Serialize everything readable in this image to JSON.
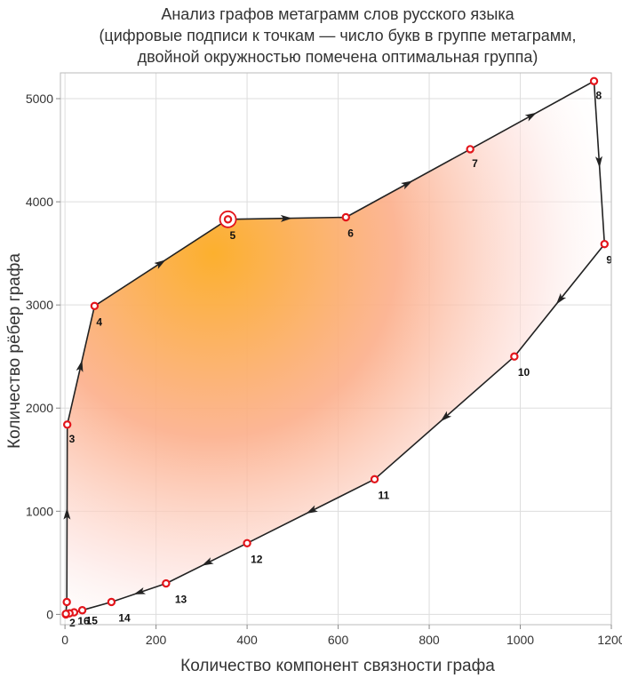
{
  "chart_data": {
    "type": "line",
    "title_lines": [
      "Анализ графов метаграмм слов русского языка",
      "(цифровые подписи к точкам — число букв в группе метаграмм,",
      "двойной окружностью помечена оптимальная группа)"
    ],
    "xlabel": "Количество компонент связности графа",
    "ylabel": "Количество рёбер графа",
    "xlim": [
      -10,
      1200
    ],
    "ylim": [
      -100,
      5250
    ],
    "xticks": [
      0,
      200,
      400,
      600,
      800,
      1000,
      1200
    ],
    "yticks": [
      0,
      1000,
      2000,
      3000,
      4000,
      5000
    ],
    "grid": true,
    "optimal_label": "5",
    "series": [
      {
        "points": [
          {
            "label": "",
            "x": 2,
            "y": 0
          },
          {
            "label": "",
            "x": 4,
            "y": 120
          },
          {
            "label": "3",
            "x": 5,
            "y": 1840
          },
          {
            "label": "4",
            "x": 65,
            "y": 2990
          },
          {
            "label": "5",
            "x": 358,
            "y": 3830
          },
          {
            "label": "6",
            "x": 617,
            "y": 3850
          },
          {
            "label": "7",
            "x": 890,
            "y": 4510
          },
          {
            "label": "8",
            "x": 1162,
            "y": 5170
          },
          {
            "label": "9",
            "x": 1185,
            "y": 3590
          },
          {
            "label": "10",
            "x": 987,
            "y": 2500
          },
          {
            "label": "11",
            "x": 680,
            "y": 1310
          },
          {
            "label": "12",
            "x": 400,
            "y": 690
          },
          {
            "label": "13",
            "x": 222,
            "y": 300
          },
          {
            "label": "14",
            "x": 102,
            "y": 120
          },
          {
            "label": "15",
            "x": 38,
            "y": 40
          },
          {
            "label": "16",
            "x": 20,
            "y": 20
          },
          {
            "label": "",
            "x": 10,
            "y": 10
          },
          {
            "label": "2",
            "x": 2,
            "y": 5
          }
        ]
      }
    ]
  }
}
